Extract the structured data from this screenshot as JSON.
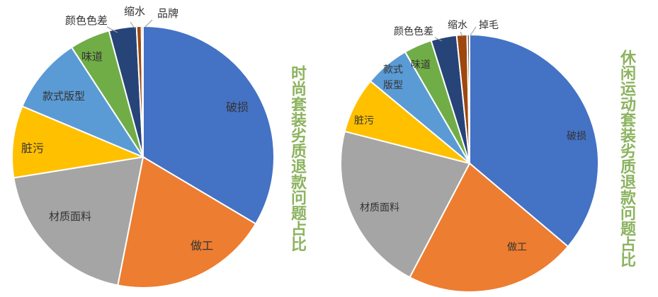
{
  "chart_data": [
    {
      "type": "pie",
      "title": "时尚套装劣质退款问题占比",
      "start_angle_deg": 0,
      "direction": "clockwise",
      "categories": [
        "破损",
        "做工",
        "材质面料",
        "脏污",
        "款式版型",
        "味道",
        "颜色色差",
        "缩水",
        "品牌"
      ],
      "values": [
        33.6,
        19.6,
        19.4,
        8.9,
        9.5,
        5.0,
        3.4,
        0.6,
        0.2
      ],
      "colors": [
        "#4472c4",
        "#ed7d31",
        "#a5a5a5",
        "#ffc000",
        "#5b9bd5",
        "#70ad47",
        "#264478",
        "#9e480e",
        "#636363"
      ]
    },
    {
      "type": "pie",
      "title": "休闲运动套装劣质退款问题占比",
      "start_angle_deg": 0,
      "direction": "clockwise",
      "categories": [
        "破损",
        "做工",
        "材质面料",
        "脏污",
        "款式版型",
        "味道",
        "颜色色差",
        "缩水",
        "掉毛"
      ],
      "values": [
        36.0,
        21.4,
        21.2,
        7.0,
        5.6,
        3.5,
        3.2,
        1.3,
        0.3
      ],
      "colors": [
        "#4472c4",
        "#ed7d31",
        "#a5a5a5",
        "#ffc000",
        "#5b9bd5",
        "#70ad47",
        "#264478",
        "#9e480e",
        "#636363"
      ]
    }
  ]
}
